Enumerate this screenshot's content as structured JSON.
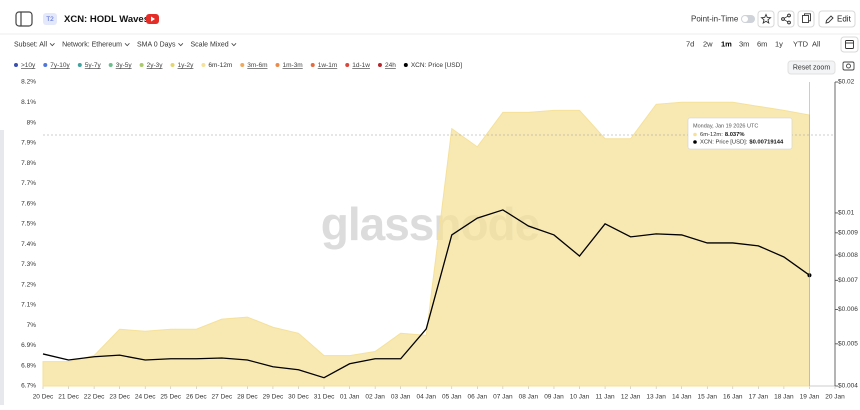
{
  "ui": {
    "badge": "T2",
    "point_in_time": "Point-in-Time",
    "edit": "Edit",
    "filters": [
      "Subset: All",
      "Network: Ethereum",
      "SMA 0 Days",
      "Scale Mixed"
    ],
    "ranges": [
      "7d",
      "2w",
      "1m",
      "3m",
      "6m",
      "1y",
      "YTD",
      "All"
    ],
    "active_range": "1m",
    "reset_zoom": "Reset zoom",
    "watermark": "glassnode",
    "tooltip": {
      "date": "Monday, Jan 19 2026 UTC",
      "rows": [
        {
          "label": "6m-12m:",
          "value": "8.037%",
          "color": "#f5e19a"
        },
        {
          "label": "XCN: Price [USD]:",
          "value": "$0.00719144",
          "color": "#000000"
        }
      ]
    }
  },
  "chart_data": {
    "type": "area-line",
    "title": "XCN: HODL Waves",
    "categories": [
      "20 Dec",
      "21 Dec",
      "22 Dec",
      "23 Dec",
      "24 Dec",
      "25 Dec",
      "26 Dec",
      "27 Dec",
      "28 Dec",
      "29 Dec",
      "30 Dec",
      "31 Dec",
      "01 Jan",
      "02 Jan",
      "03 Jan",
      "04 Jan",
      "05 Jan",
      "06 Jan",
      "07 Jan",
      "08 Jan",
      "09 Jan",
      "10 Jan",
      "11 Jan",
      "12 Jan",
      "13 Jan",
      "14 Jan",
      "15 Jan",
      "16 Jan",
      "17 Jan",
      "18 Jan",
      "19 Jan",
      "20 Jan"
    ],
    "ylim": [
      6.7,
      8.2
    ],
    "yticks": [
      {
        "value": 6.7,
        "label": "6.7%"
      },
      {
        "value": 6.8,
        "label": "6.8%"
      },
      {
        "value": 6.9,
        "label": "6.9%"
      },
      {
        "value": 7.0,
        "label": "7%"
      },
      {
        "value": 7.1,
        "label": "7.1%"
      },
      {
        "value": 7.2,
        "label": "7.2%"
      },
      {
        "value": 7.3,
        "label": "7.3%"
      },
      {
        "value": 7.4,
        "label": "7.4%"
      },
      {
        "value": 7.5,
        "label": "7.5%"
      },
      {
        "value": 7.6,
        "label": "7.6%"
      },
      {
        "value": 7.7,
        "label": "7.7%"
      },
      {
        "value": 7.8,
        "label": "7.8%"
      },
      {
        "value": 7.9,
        "label": "7.9%"
      },
      {
        "value": 8.0,
        "label": "8%"
      },
      {
        "value": 8.1,
        "label": "8.1%"
      },
      {
        "value": 8.2,
        "label": "8.2%"
      }
    ],
    "y2lim": [
      0.004,
      0.02
    ],
    "y2scale": "log",
    "y2ticks": [
      {
        "value": 0.004,
        "label": "$0.004"
      },
      {
        "value": 0.005,
        "label": "$0.005"
      },
      {
        "value": 0.006,
        "label": "$0.006"
      },
      {
        "value": 0.007,
        "label": "$0.007"
      },
      {
        "value": 0.008,
        "label": "$0.008"
      },
      {
        "value": 0.009,
        "label": "$0.009"
      },
      {
        "value": 0.01,
        "label": "$0.01"
      },
      {
        "value": 0.02,
        "label": "$0.02"
      }
    ],
    "grid": false,
    "series": [
      {
        "name": ">10y",
        "color": "#3a4fb0",
        "hidden": true
      },
      {
        "name": "7y-10y",
        "color": "#4f76d8",
        "hidden": true
      },
      {
        "name": "5y-7y",
        "color": "#3fa3a0",
        "hidden": true
      },
      {
        "name": "3y-5y",
        "color": "#6cbf8c",
        "hidden": true
      },
      {
        "name": "2y-3y",
        "color": "#a9c96a",
        "hidden": true
      },
      {
        "name": "1y-2y",
        "color": "#e3d66a",
        "hidden": true
      },
      {
        "name": "6m-12m",
        "color": "#f5e19a",
        "kind": "area",
        "values": [
          6.82,
          6.82,
          6.85,
          6.98,
          6.97,
          6.98,
          6.98,
          7.03,
          7.04,
          6.99,
          6.96,
          6.85,
          6.85,
          6.87,
          6.96,
          6.95,
          7.97,
          7.88,
          8.05,
          8.05,
          8.06,
          8.06,
          7.92,
          7.92,
          8.09,
          8.1,
          8.1,
          8.1,
          8.08,
          8.06,
          8.037,
          null
        ]
      },
      {
        "name": "3m-6m",
        "color": "#f0a85a",
        "hidden": true
      },
      {
        "name": "1m-3m",
        "color": "#ec8a4a",
        "hidden": true
      },
      {
        "name": "1w-1m",
        "color": "#e56a3e",
        "hidden": true
      },
      {
        "name": "1d-1w",
        "color": "#d9473a",
        "hidden": true
      },
      {
        "name": "24h",
        "color": "#b8262d",
        "hidden": true
      },
      {
        "name": "XCN: Price [USD]",
        "color": "#000000",
        "kind": "line",
        "axis": "y2",
        "values": [
          0.00474,
          0.00459,
          0.00467,
          0.00471,
          0.00459,
          0.00462,
          0.00462,
          0.00464,
          0.00459,
          0.00443,
          0.00436,
          0.00418,
          0.0045,
          0.00462,
          0.00462,
          0.00541,
          0.0089,
          0.00973,
          0.01016,
          0.00933,
          0.0089,
          0.00796,
          0.00944,
          0.00881,
          0.00895,
          0.0089,
          0.00853,
          0.00853,
          0.0084,
          0.00792,
          0.00719144,
          null
        ]
      }
    ]
  }
}
